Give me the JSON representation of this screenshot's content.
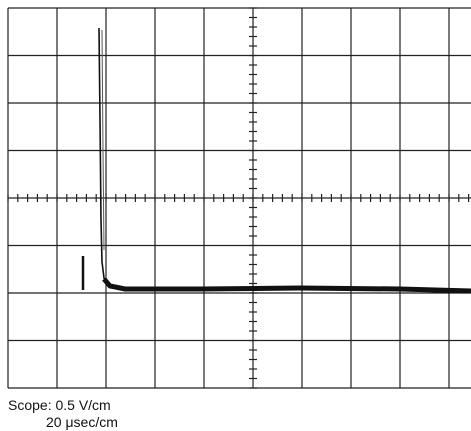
{
  "caption": {
    "line1": "Scope: 0.5 V/cm",
    "line2": "20 μsec/cm"
  }
}
